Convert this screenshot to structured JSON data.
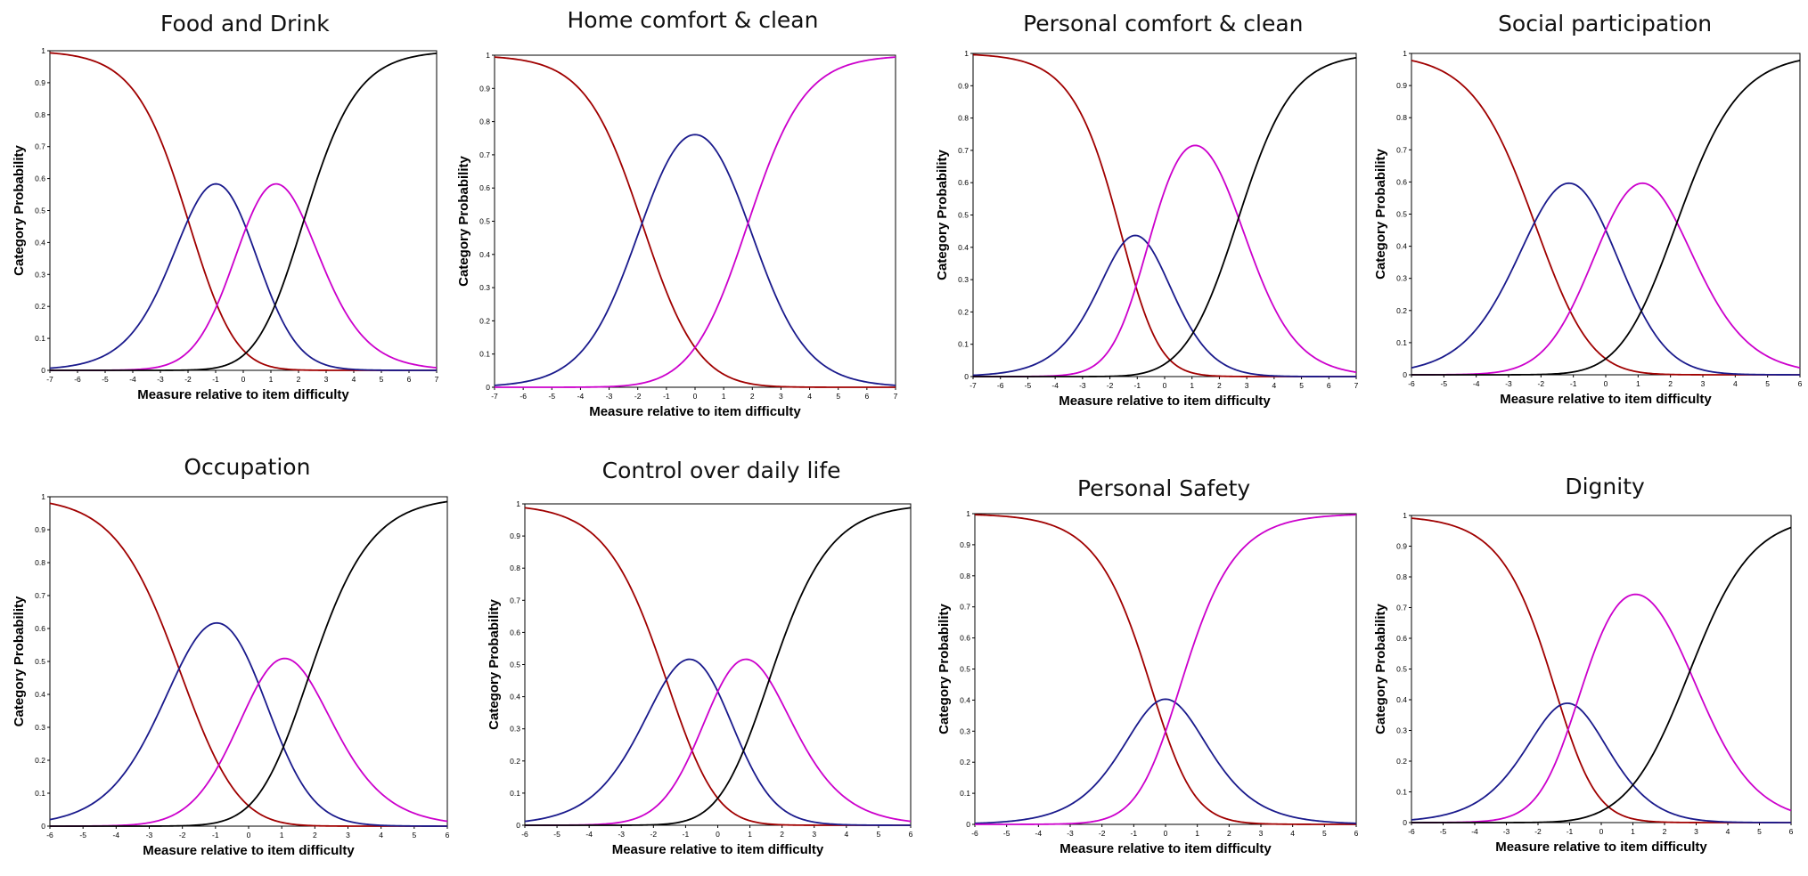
{
  "figure": {
    "panels_rows": 2,
    "panels_cols": 4
  },
  "chart_data": [
    {
      "type": "line",
      "title": "Food and Drink",
      "xlabel": "Measure relative to item difficulty",
      "ylabel": "Category Probability",
      "xlim": [
        -7,
        7
      ],
      "ylim": [
        0,
        1
      ],
      "x_ticks": [
        "-7",
        "-6",
        "-5",
        "-4",
        "-3",
        "-2",
        "-1",
        "0",
        "1",
        "2",
        "3",
        "4",
        "5",
        "6",
        "7"
      ],
      "y_ticks": [
        "0",
        "0.1",
        "0.2",
        "0.3",
        "0.4",
        "0.5",
        "0.6",
        "0.7",
        "0.8",
        "0.9",
        "1"
      ],
      "thresholds": [
        -2.0,
        0.1,
        2.2
      ],
      "series_colors": [
        "#a00000",
        "#1a1a8c",
        "#cc00cc",
        "#000000"
      ],
      "grid": false
    },
    {
      "type": "line",
      "title": "Home comfort & clean",
      "xlabel": "Measure relative to item difficulty",
      "ylabel": "Category Probability",
      "xlim": [
        -7,
        7
      ],
      "ylim": [
        0,
        1
      ],
      "x_ticks": [
        "-7",
        "-6",
        "-5",
        "-4",
        "-3",
        "-2",
        "-1",
        "0",
        "1",
        "2",
        "3",
        "4",
        "5",
        "6",
        "7"
      ],
      "y_ticks": [
        "0",
        "0.1",
        "0.2",
        "0.3",
        "0.4",
        "0.5",
        "0.6",
        "0.7",
        "0.8",
        "0.9",
        "1"
      ],
      "thresholds": [
        -1.85,
        1.85
      ],
      "series_colors": [
        "#a00000",
        "#1a1a8c",
        "#cc00cc"
      ],
      "grid": false
    },
    {
      "type": "line",
      "title": "Personal comfort & clean",
      "xlabel": "Measure relative to item difficulty",
      "ylabel": "Category Probability",
      "xlim": [
        -7,
        7
      ],
      "ylim": [
        0,
        1
      ],
      "x_ticks": [
        "-7",
        "-6",
        "-5",
        "-4",
        "-3",
        "-2",
        "-1",
        "0",
        "1",
        "2",
        "3",
        "4",
        "5",
        "6",
        "7"
      ],
      "y_ticks": [
        "0",
        "0.1",
        "0.2",
        "0.3",
        "0.4",
        "0.5",
        "0.6",
        "0.7",
        "0.8",
        "0.9",
        "1"
      ],
      "thresholds": [
        -1.5,
        -0.6,
        2.7
      ],
      "series_colors": [
        "#a00000",
        "#1a1a8c",
        "#cc00cc",
        "#000000"
      ],
      "grid": false
    },
    {
      "type": "line",
      "title": "Social participation",
      "xlabel": "Measure relative to item difficulty",
      "ylabel": "Category Probability",
      "xlim": [
        -6,
        6
      ],
      "ylim": [
        0,
        1
      ],
      "x_ticks": [
        "-6",
        "-5",
        "-4",
        "-3",
        "-2",
        "-1",
        "0",
        "1",
        "2",
        "3",
        "4",
        "5",
        "6"
      ],
      "y_ticks": [
        "0",
        "0.1",
        "0.2",
        "0.3",
        "0.4",
        "0.5",
        "0.6",
        "0.7",
        "0.8",
        "0.9",
        "1"
      ],
      "thresholds": [
        -2.2,
        0.0,
        2.2
      ],
      "series_colors": [
        "#a00000",
        "#1a1a8c",
        "#cc00cc",
        "#000000"
      ],
      "grid": false
    },
    {
      "type": "line",
      "title": "Occupation",
      "xlabel": "Measure relative to item difficulty",
      "ylabel": "Category Probability",
      "xlim": [
        -6,
        6
      ],
      "ylim": [
        0,
        1
      ],
      "x_ticks": [
        "-6",
        "-5",
        "-4",
        "-3",
        "-2",
        "-1",
        "0",
        "1",
        "2",
        "3",
        "4",
        "5",
        "6"
      ],
      "y_ticks": [
        "0",
        "0.1",
        "0.2",
        "0.3",
        "0.4",
        "0.5",
        "0.6",
        "0.7",
        "0.8",
        "0.9",
        "1"
      ],
      "thresholds": [
        -2.1,
        0.3,
        1.8
      ],
      "series_colors": [
        "#a00000",
        "#1a1a8c",
        "#cc00cc",
        "#000000"
      ],
      "grid": false
    },
    {
      "type": "line",
      "title": "Control over daily life",
      "xlabel": "Measure relative to item difficulty",
      "ylabel": "Category Probability",
      "xlim": [
        -6,
        6
      ],
      "ylim": [
        0,
        1
      ],
      "x_ticks": [
        "-6",
        "-5",
        "-4",
        "-3",
        "-2",
        "-1",
        "0",
        "1",
        "2",
        "3",
        "4",
        "5",
        "6"
      ],
      "y_ticks": [
        "0",
        "0.1",
        "0.2",
        "0.3",
        "0.4",
        "0.5",
        "0.6",
        "0.7",
        "0.8",
        "0.9",
        "1"
      ],
      "thresholds": [
        -1.6,
        0.0,
        1.6
      ],
      "series_colors": [
        "#a00000",
        "#1a1a8c",
        "#cc00cc",
        "#000000"
      ],
      "grid": false
    },
    {
      "type": "line",
      "title": "Personal Safety",
      "xlabel": "Measure relative to item difficulty",
      "ylabel": "Category Probability",
      "xlim": [
        -6,
        6
      ],
      "ylim": [
        0,
        1
      ],
      "x_ticks": [
        "-6",
        "-5",
        "-4",
        "-3",
        "-2",
        "-1",
        "0",
        "1",
        "2",
        "3",
        "4",
        "5",
        "6"
      ],
      "y_ticks": [
        "0",
        "0.1",
        "0.2",
        "0.3",
        "0.4",
        "0.5",
        "0.6",
        "0.7",
        "0.8",
        "0.9",
        "1"
      ],
      "thresholds": [
        -0.3,
        0.3
      ],
      "series_colors": [
        "#a00000",
        "#1a1a8c",
        "#cc00cc"
      ],
      "grid": false
    },
    {
      "type": "line",
      "title": "Dignity",
      "xlabel": "Measure relative to item difficulty",
      "ylabel": "Category Probability",
      "xlim": [
        -6,
        6
      ],
      "ylim": [
        0,
        1
      ],
      "x_ticks": [
        "-6",
        "-5",
        "-4",
        "-3",
        "-2",
        "-1",
        "0",
        "1",
        "2",
        "3",
        "4",
        "5",
        "6"
      ],
      "y_ticks": [
        "0",
        "0.1",
        "0.2",
        "0.3",
        "0.4",
        "0.5",
        "0.6",
        "0.7",
        "0.8",
        "0.9",
        "1"
      ],
      "thresholds": [
        -1.3,
        -0.8,
        2.8
      ],
      "series_colors": [
        "#a00000",
        "#1a1a8c",
        "#cc00cc",
        "#000000"
      ],
      "grid": false
    }
  ]
}
